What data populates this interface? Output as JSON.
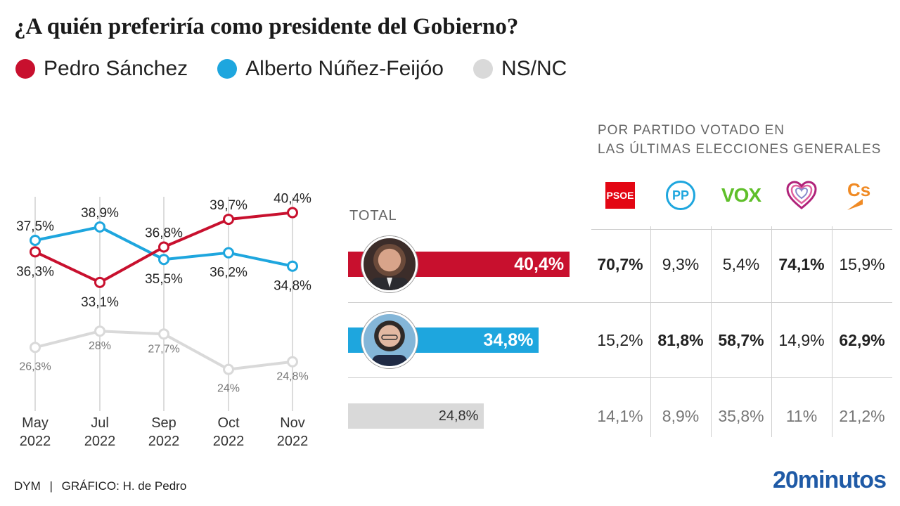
{
  "title": "¿A quién preferiría como presidente del Gobierno?",
  "colors": {
    "sanchez": "#c8102e",
    "feijoo": "#1ea6de",
    "nsnc": "#d9d9d9"
  },
  "chart_data": [
    {
      "type": "line",
      "categories": [
        [
          "May",
          "2022"
        ],
        [
          "Jul",
          "2022"
        ],
        [
          "Sep",
          "2022"
        ],
        [
          "Oct",
          "2022"
        ],
        [
          "Nov",
          "2022"
        ]
      ],
      "ylim": [
        20,
        45
      ],
      "legend_position": "top-left",
      "series": [
        {
          "name": "Pedro Sánchez",
          "color": "#c8102e",
          "values": [
            36.3,
            33.1,
            36.8,
            39.7,
            40.4
          ],
          "labels": [
            "36,3%",
            "33,1%",
            "36,8%",
            "39,7%",
            "40,4%"
          ]
        },
        {
          "name": "Alberto Núñez-Feijóo",
          "color": "#1ea6de",
          "values": [
            37.5,
            38.9,
            35.5,
            36.2,
            34.8
          ],
          "labels": [
            "37,5%",
            "38,9%",
            "35,5%",
            "36,2%",
            "34,8%"
          ]
        },
        {
          "name": "NS/NC",
          "color": "#d9d9d9",
          "values": [
            26.3,
            28,
            27.7,
            24,
            24.8
          ],
          "labels": [
            "26,3%",
            "28%",
            "27,7%",
            "24%",
            "24,8%"
          ]
        }
      ]
    },
    {
      "type": "bar",
      "label": "TOTAL",
      "xlim": [
        0,
        50
      ],
      "series": [
        {
          "name": "Pedro Sánchez",
          "value": 40.4,
          "label": "40,4%",
          "color": "#c8102e"
        },
        {
          "name": "Alberto Núñez-Feijóo",
          "value": 34.8,
          "label": "34,8%",
          "color": "#1ea6de"
        },
        {
          "name": "NS/NC",
          "value": 24.8,
          "label": "24,8%",
          "color": "#d9d9d9"
        }
      ]
    },
    {
      "type": "table",
      "header": [
        "POR PARTIDO VOTADO EN",
        "LAS ÚLTIMAS ELECCIONES GENERALES"
      ],
      "columns": [
        "PSOE",
        "PP",
        "VOX",
        "Unidas Podemos",
        "Cs"
      ],
      "rows": [
        {
          "series": "Pedro Sánchez",
          "values": [
            "70,7%",
            "9,3%",
            "5,4%",
            "74,1%",
            "15,9%"
          ],
          "bold": [
            true,
            false,
            false,
            true,
            false
          ]
        },
        {
          "series": "Alberto Núñez-Feijóo",
          "values": [
            "15,2%",
            "81,8%",
            "58,7%",
            "14,9%",
            "62,9%"
          ],
          "bold": [
            false,
            true,
            true,
            false,
            true
          ]
        },
        {
          "series": "NS/NC",
          "values": [
            "14,1%",
            "8,9%",
            "35,8%",
            "11%",
            "21,2%"
          ],
          "bold": [
            false,
            false,
            false,
            false,
            false
          ]
        }
      ]
    }
  ],
  "logos": {
    "psoe": "PSOE",
    "pp": "PP",
    "vox": "VOX",
    "cs": "Cs",
    "podemos_icon": "heart-icon"
  },
  "footer": {
    "source": "DYM",
    "separator": "|",
    "credit": "GRÁFICO: H. de Pedro",
    "brand": "20minutos"
  }
}
